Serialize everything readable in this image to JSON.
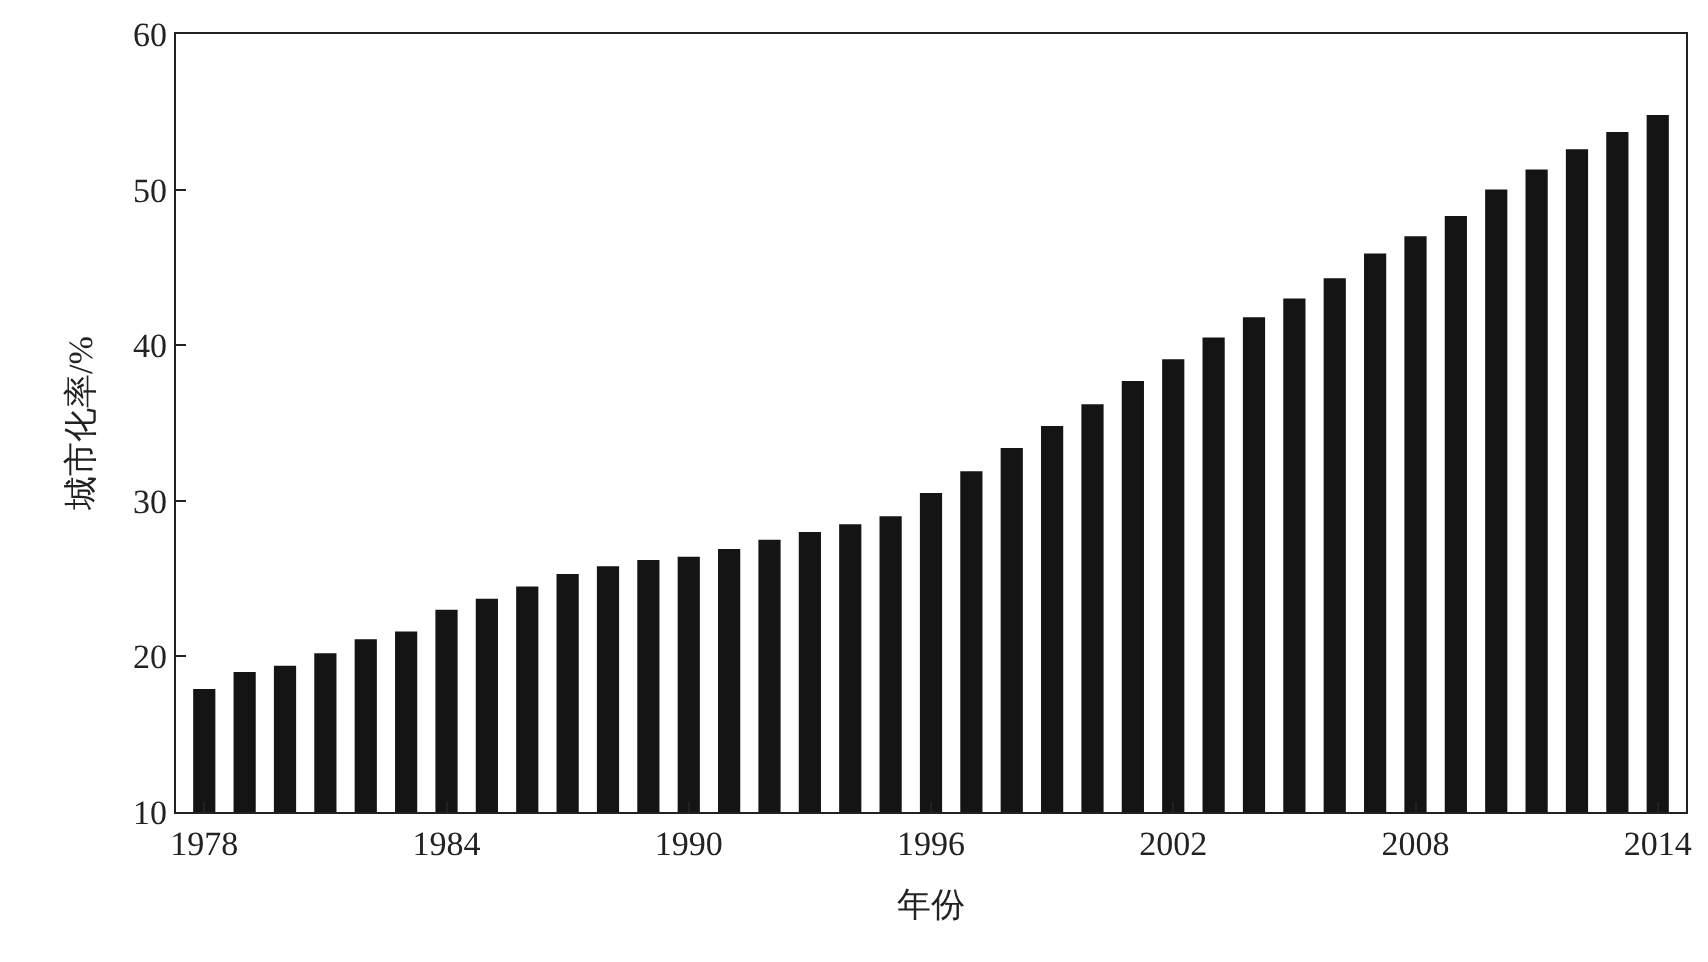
{
  "chart_data": {
    "type": "bar",
    "xlabel": "年份",
    "ylabel": "城市化率/%",
    "x": [
      1978,
      1979,
      1980,
      1981,
      1982,
      1983,
      1984,
      1985,
      1986,
      1987,
      1988,
      1989,
      1990,
      1991,
      1992,
      1993,
      1994,
      1995,
      1996,
      1997,
      1998,
      1999,
      2000,
      2001,
      2002,
      2003,
      2004,
      2005,
      2006,
      2007,
      2008,
      2009,
      2010,
      2011,
      2012,
      2013,
      2014
    ],
    "values": [
      17.9,
      19.0,
      19.4,
      20.2,
      21.1,
      21.6,
      23.0,
      23.7,
      24.5,
      25.3,
      25.8,
      26.2,
      26.4,
      26.9,
      27.5,
      28.0,
      28.5,
      29.0,
      30.5,
      31.9,
      33.4,
      34.8,
      36.2,
      37.7,
      39.1,
      40.5,
      41.8,
      43.0,
      44.3,
      45.9,
      47.0,
      48.3,
      50.0,
      51.3,
      52.6,
      53.7,
      54.8
    ],
    "color": "#141414",
    "xlim": [
      1977.3,
      2014.7
    ],
    "xticks": [
      1978,
      1984,
      1990,
      1996,
      2002,
      2008,
      2014
    ],
    "ylim": [
      10,
      60
    ],
    "yticks": [
      10,
      20,
      30,
      40,
      50,
      60
    ]
  }
}
